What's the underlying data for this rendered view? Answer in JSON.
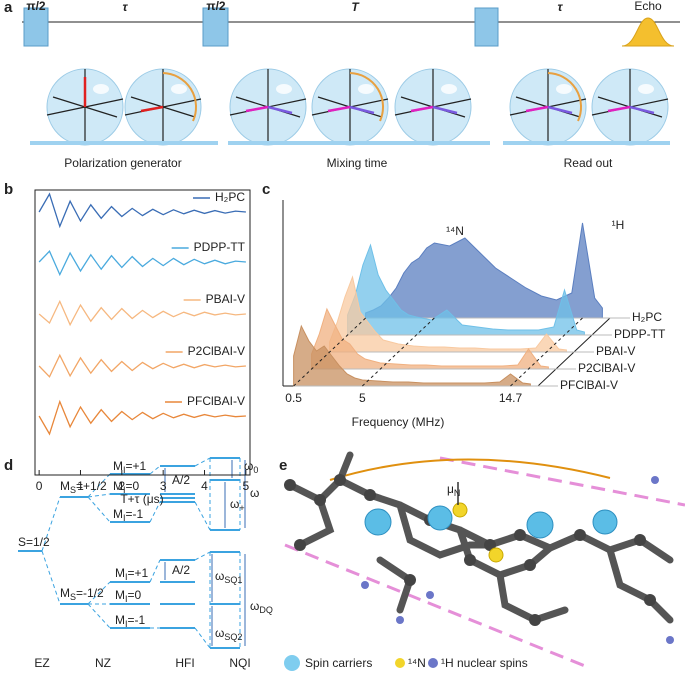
{
  "panel_a": {
    "label": "a",
    "pulses": [
      "π/2",
      "π/2"
    ],
    "delays": [
      "τ",
      "T",
      "τ"
    ],
    "echo": "Echo",
    "stages": [
      "Polarization generator",
      "Mixing time",
      "Read out"
    ]
  },
  "chart_data": [
    {
      "type": "traces",
      "panel_label": "b",
      "x_label": "T+τ (μs)",
      "x": [
        0,
        0.25,
        0.5,
        0.75,
        1,
        1.25,
        1.5,
        1.75,
        2,
        2.25,
        2.5,
        2.75,
        3,
        3.25,
        3.5,
        3.75,
        4,
        4.25,
        4.5,
        4.75,
        5
      ],
      "xlim": [
        -0.1,
        5.1
      ],
      "xticks": [
        0,
        1,
        2,
        3,
        4,
        5
      ],
      "series": [
        {
          "name": "H₂PC",
          "color": "#3a6db5",
          "values": [
            0,
            1,
            -0.8,
            0.6,
            -0.5,
            0.4,
            -0.35,
            0.3,
            -0.25,
            0.2,
            -0.2,
            0.15,
            -0.15,
            0.12,
            -0.1,
            0.1,
            -0.08,
            0.08,
            -0.06,
            0.05,
            0
          ]
        },
        {
          "name": "PDPP-TT",
          "color": "#4aaade",
          "values": [
            0,
            0.6,
            -0.7,
            0.5,
            -0.5,
            0.4,
            -0.4,
            0.35,
            -0.3,
            0.3,
            -0.25,
            0.2,
            -0.2,
            0.2,
            -0.15,
            0.15,
            -0.1,
            0.1,
            -0.1,
            0.05,
            0
          ]
        },
        {
          "name": "PBAI-V",
          "color": "#f6b880",
          "values": [
            0,
            -0.5,
            0.7,
            -0.6,
            0.5,
            -0.4,
            0.35,
            -0.3,
            0.3,
            -0.25,
            0.2,
            -0.2,
            0.15,
            -0.15,
            0.1,
            -0.1,
            0.1,
            -0.05,
            0.05,
            -0.05,
            0
          ]
        },
        {
          "name": "P2ClBAI-V",
          "color": "#f2a666",
          "values": [
            0,
            -0.6,
            0.6,
            -0.55,
            0.45,
            -0.4,
            0.35,
            -0.3,
            0.25,
            -0.25,
            0.2,
            -0.15,
            0.15,
            -0.1,
            0.1,
            -0.1,
            0.08,
            -0.05,
            0.05,
            -0.05,
            0
          ]
        },
        {
          "name": "PFClBAI-V",
          "color": "#e8873a",
          "values": [
            0,
            -1,
            0.8,
            -0.6,
            0.5,
            -0.4,
            0.35,
            -0.3,
            0.25,
            -0.2,
            0.2,
            -0.15,
            0.15,
            -0.1,
            0.1,
            -0.08,
            0.08,
            -0.05,
            0.05,
            -0.04,
            0
          ]
        }
      ]
    },
    {
      "type": "waterfall",
      "panel_label": "c",
      "x_label": "Frequency (MHz)",
      "x": [
        0.5,
        1,
        1.5,
        2,
        2.5,
        3,
        3.5,
        4,
        4.5,
        5,
        6,
        7,
        8,
        9,
        10,
        11,
        12,
        13,
        14,
        14.7,
        15.5,
        16
      ],
      "xlim": [
        0,
        16.5
      ],
      "xticks": [
        0.5,
        5,
        14.7
      ],
      "annotations": [
        "¹⁴N",
        "¹H"
      ],
      "series": [
        {
          "name": "H₂PC",
          "color": "#5b7fc0",
          "values": [
            5,
            8,
            12,
            20,
            30,
            45,
            55,
            60,
            70,
            75,
            72,
            80,
            65,
            50,
            40,
            30,
            22,
            18,
            25,
            95,
            20,
            10
          ]
        },
        {
          "name": "PDPP-TT",
          "color": "#6fc0e8",
          "values": [
            20,
            40,
            70,
            90,
            60,
            45,
            35,
            25,
            20,
            18,
            15,
            25,
            10,
            8,
            6,
            5,
            5,
            5,
            8,
            45,
            5,
            3
          ]
        },
        {
          "name": "PBAI-V",
          "color": "#f8c9a0",
          "values": [
            10,
            30,
            55,
            75,
            40,
            30,
            20,
            12,
            10,
            8,
            6,
            5,
            5,
            4,
            4,
            3,
            3,
            3,
            4,
            18,
            3,
            2
          ]
        },
        {
          "name": "P2ClBAI-V",
          "color": "#f0b080",
          "values": [
            15,
            35,
            60,
            45,
            30,
            25,
            15,
            10,
            8,
            6,
            5,
            4,
            4,
            3,
            3,
            3,
            3,
            3,
            4,
            20,
            3,
            2
          ]
        },
        {
          "name": "PFClBAI-V",
          "color": "#c89060",
          "values": [
            30,
            60,
            45,
            35,
            40,
            30,
            20,
            12,
            8,
            6,
            5,
            4,
            4,
            3,
            3,
            3,
            3,
            3,
            4,
            12,
            3,
            2
          ]
        }
      ]
    }
  ],
  "panel_d": {
    "label": "d",
    "spin": "S=1/2",
    "ms": [
      [
        "M",
        "S",
        "=+1/2"
      ],
      [
        "M",
        "S",
        "=-1/2"
      ]
    ],
    "mi_upper": [
      [
        "M",
        "I",
        "=+1"
      ],
      [
        "M",
        "I",
        "=0"
      ],
      [
        "M",
        "I",
        "=-1"
      ]
    ],
    "mi_lower": [
      [
        "M",
        "I",
        "=+1"
      ],
      [
        "M",
        "I",
        "=0"
      ],
      [
        "M",
        "I",
        "=-1"
      ]
    ],
    "hyperfine": [
      "A/2",
      "A/2"
    ],
    "frequencies": [
      [
        "ω",
        "0"
      ],
      [
        "ω",
        "+"
      ],
      "ω",
      [
        "ω",
        "SQ1"
      ],
      [
        "ω",
        "DQ"
      ],
      [
        "ω",
        "SQ2"
      ]
    ],
    "stages": [
      "EZ",
      "NZ",
      "HFI",
      "NQI"
    ]
  },
  "panel_e": {
    "label": "e",
    "moment": [
      "μ",
      "N"
    ],
    "legend": [
      "Spin carriers",
      "¹⁴N",
      "¹H nuclear spins"
    ]
  }
}
